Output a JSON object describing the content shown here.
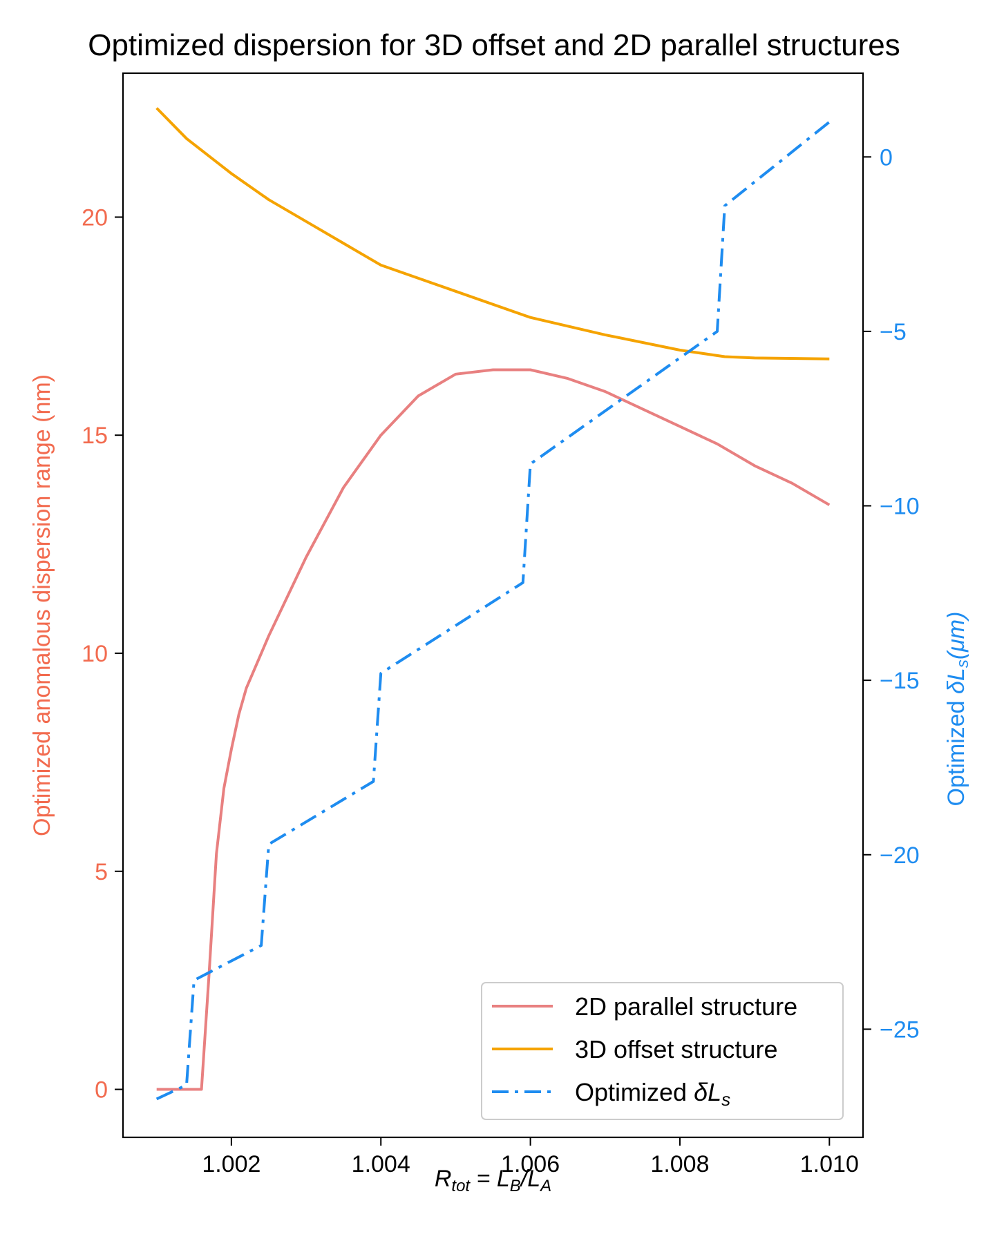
{
  "chart_data": {
    "type": "line",
    "title": "Optimized dispersion for 3D offset and 2D parallel structures",
    "xlabel": {
      "base": "R",
      "sub": "tot",
      "eq": " = L",
      "sub2": "B",
      "slash": "/L",
      "sub3": "A"
    },
    "ylabel_left": "Optimized anomalous dispersion range (nm)",
    "ylabel_right": {
      "prefix": "Optimized ",
      "symbol": "δL",
      "sub": "s",
      "unit": "(μm)"
    },
    "xlim": [
      1.00055,
      1.01045
    ],
    "ylim_left": [
      -1.1,
      23.3
    ],
    "ylim_right": [
      -28.1,
      2.4
    ],
    "x_ticks": [
      1.002,
      1.004,
      1.006,
      1.008,
      1.01
    ],
    "x_tick_labels": [
      "1.002",
      "1.004",
      "1.006",
      "1.008",
      "1.010"
    ],
    "y_left_ticks": [
      0,
      5,
      10,
      15,
      20
    ],
    "y_left_tick_labels": [
      "0",
      "5",
      "10",
      "15",
      "20"
    ],
    "y_right_ticks": [
      -25,
      -20,
      -15,
      -10,
      -5,
      0
    ],
    "y_right_tick_labels": [
      "−25",
      "−20",
      "−15",
      "−10",
      "−5",
      "0"
    ],
    "colors": {
      "left_axis": "#f26b4f",
      "right_axis": "#1e8cf0",
      "series_2d": "#e88080",
      "series_3d": "#f5a300",
      "series_dl": "#1e8cf0"
    },
    "legend_position": "lower-right",
    "series": [
      {
        "name": "2D parallel structure",
        "axis": "left",
        "style": "solid",
        "x": [
          1.001,
          1.0016,
          1.0017,
          1.0018,
          1.0019,
          1.002,
          1.0021,
          1.0022,
          1.0025,
          1.003,
          1.0035,
          1.004,
          1.0045,
          1.005,
          1.0055,
          1.0058,
          1.006,
          1.0065,
          1.007,
          1.0075,
          1.008,
          1.0085,
          1.009,
          1.0095,
          1.01
        ],
        "values": [
          0,
          0,
          2.6,
          5.4,
          6.9,
          7.8,
          8.6,
          9.2,
          10.4,
          12.2,
          13.8,
          15.0,
          15.9,
          16.4,
          16.5,
          16.5,
          16.5,
          16.3,
          16.0,
          15.6,
          15.2,
          14.8,
          14.3,
          13.9,
          13.4
        ]
      },
      {
        "name": "3D offset structure",
        "axis": "left",
        "style": "solid",
        "x": [
          1.001,
          1.0014,
          1.002,
          1.0025,
          1.003,
          1.004,
          1.005,
          1.006,
          1.007,
          1.008,
          1.0086,
          1.009,
          1.01
        ],
        "values": [
          22.5,
          21.8,
          21.0,
          20.4,
          19.9,
          18.9,
          18.3,
          17.7,
          17.3,
          16.95,
          16.8,
          16.77,
          16.75
        ]
      },
      {
        "name": "Optimized δLs",
        "legend": {
          "prefix": "Optimized ",
          "symbol": "δL",
          "sub": "s"
        },
        "axis": "right",
        "style": "dashdot",
        "x": [
          1.001,
          1.0014,
          1.0015,
          1.0024,
          1.0025,
          1.0039,
          1.004,
          1.0059,
          1.006,
          1.0085,
          1.0086,
          1.01
        ],
        "values": [
          -27.0,
          -26.6,
          -23.6,
          -22.6,
          -19.7,
          -17.9,
          -14.8,
          -12.2,
          -8.8,
          -5.0,
          -1.4,
          1.0
        ]
      }
    ]
  }
}
